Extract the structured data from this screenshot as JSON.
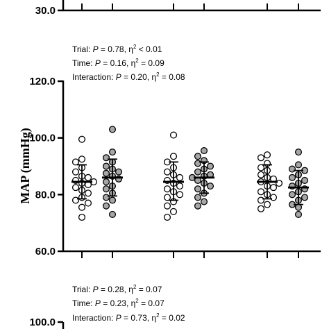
{
  "chart_data": [
    {
      "type": "scatter",
      "panel": "top",
      "ylabel": "",
      "tick_labels": [
        "30.0"
      ],
      "ylim_partial": [
        30,
        null
      ],
      "partial": true
    },
    {
      "type": "scatter",
      "panel": "middle",
      "ylabel": "MAP (mmHg)",
      "ylim": [
        60,
        120
      ],
      "y_ticks": [
        60,
        80,
        100,
        120
      ],
      "tick_labels": [
        "60.0",
        "80.0",
        "100.0",
        "120.0"
      ],
      "grid": false,
      "legend": "none",
      "annotations": {
        "trial": {
          "label": "Trial: ",
          "p": "P",
          "rest": " = 0.78, η",
          "sup": "2",
          "tail": " < 0.01"
        },
        "time": {
          "label": "Time: ",
          "p": "P",
          "rest": " = 0.16, η",
          "sup": "2",
          "tail": " = 0.09"
        },
        "interaction": {
          "label": "Interaction: ",
          "p": "P",
          "rest": " = 0.20, η",
          "sup": "2",
          "tail": " = 0.08"
        }
      },
      "groups": [
        {
          "time_index": 1,
          "condition": "open",
          "mean": 84.5,
          "sd_low": 78.5,
          "sd_high": 90.5,
          "values": [
            99.5,
            92.5,
            91.5,
            89.5,
            88.0,
            86.5,
            86.0,
            85.0,
            84.5,
            84.0,
            83.5,
            82.5,
            81.5,
            80.5,
            79.0,
            78.0,
            77.0,
            75.5,
            72.0
          ]
        },
        {
          "time_index": 1,
          "condition": "filled",
          "mean": 86.0,
          "sd_low": 79.5,
          "sd_high": 92.5,
          "values": [
            103.0,
            95.0,
            93.0,
            91.5,
            90.0,
            89.0,
            88.0,
            87.5,
            86.5,
            85.5,
            84.5,
            83.0,
            82.0,
            80.5,
            79.0,
            78.0,
            76.0,
            73.0
          ]
        },
        {
          "time_index": 2,
          "condition": "open",
          "mean": 84.5,
          "sd_low": 78.0,
          "sd_high": 91.5,
          "values": [
            101.0,
            93.5,
            91.5,
            89.5,
            88.0,
            87.0,
            86.0,
            85.0,
            84.0,
            83.0,
            82.0,
            81.0,
            80.0,
            79.0,
            77.5,
            76.0,
            74.0,
            72.0
          ]
        },
        {
          "time_index": 2,
          "condition": "filled",
          "mean": 86.0,
          "sd_low": 80.5,
          "sd_high": 91.5,
          "values": [
            95.5,
            93.5,
            92.0,
            91.0,
            90.0,
            89.0,
            88.0,
            87.0,
            86.5,
            86.0,
            85.0,
            84.0,
            83.0,
            82.0,
            80.5,
            79.0,
            77.5,
            76.0
          ]
        },
        {
          "time_index": 3,
          "condition": "open",
          "mean": 84.5,
          "sd_low": 78.5,
          "sd_high": 90.5,
          "values": [
            94.0,
            93.0,
            91.0,
            89.5,
            88.5,
            87.0,
            86.0,
            85.5,
            84.5,
            84.0,
            83.0,
            82.5,
            81.0,
            80.0,
            79.0,
            78.0,
            76.5,
            75.0
          ]
        },
        {
          "time_index": 3,
          "condition": "filled",
          "mean": 82.5,
          "sd_low": 76.5,
          "sd_high": 88.5,
          "values": [
            95.0,
            90.5,
            89.0,
            88.5,
            87.0,
            86.0,
            85.0,
            84.0,
            83.0,
            82.0,
            81.0,
            80.0,
            79.0,
            78.0,
            76.5,
            75.5,
            73.0
          ]
        }
      ]
    },
    {
      "type": "scatter",
      "panel": "bottom",
      "ylabel": "",
      "tick_labels": [
        "100.0"
      ],
      "partial": true,
      "annotations": {
        "trial": {
          "label": "Trial: ",
          "p": "P",
          "rest": " = 0.28, η",
          "sup": "2",
          "tail": " = 0.07"
        },
        "time": {
          "label": "Time: ",
          "p": "P",
          "rest": " = 0.23, η",
          "sup": "2",
          "tail": " = 0.07"
        },
        "interaction": {
          "label": "Interaction: ",
          "p": "P",
          "rest": " = 0.73, η",
          "sup": "2",
          "tail": " = 0.02"
        }
      }
    }
  ],
  "colors": {
    "open_fill": "#ffffff",
    "filled_fill": "#a6a6a6",
    "stroke": "#000000"
  }
}
